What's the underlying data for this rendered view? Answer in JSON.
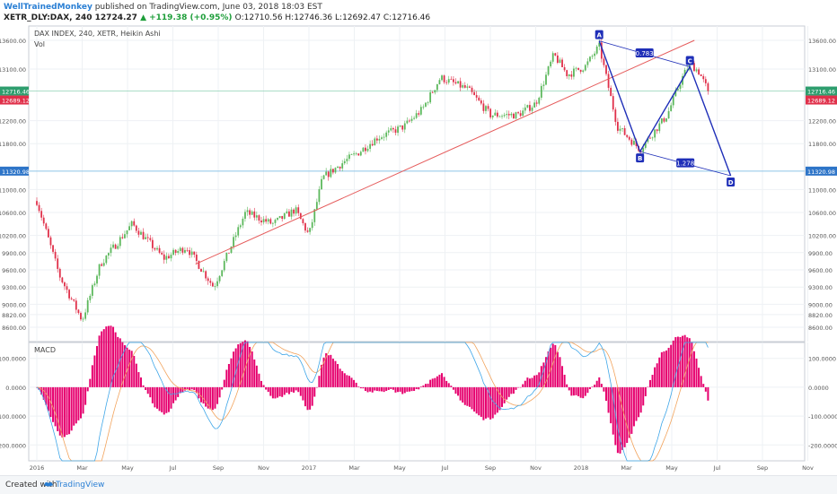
{
  "header": {
    "author": "WellTrainedMonkey",
    "published_text": "published on TradingView.com, June 03, 2018 18:03 EST",
    "symbol_line": "XETR_DLY:DAX, 240",
    "last_price": "12724.27",
    "change": "▲ +119.38 (+0.95%)",
    "ohlc": "O:12710.56 H:12746.36 L:12692.47 C:12716.46"
  },
  "footer": {
    "created_with": "Created with",
    "brand": "TradingView",
    "brand_icon": "tradingview-logo-icon"
  },
  "colors": {
    "candle_up": "#5cb85c",
    "candle_down": "#e0304a",
    "trendline": "#e55a5a",
    "harmonic": "#1f2fb8",
    "macd_line": "#3ea6e8",
    "signal_line": "#f2a35c",
    "histogram": "#e6006e",
    "price_label": "#2e9e6e",
    "bid_label": "#e0304a",
    "level_label": "#2e75c8",
    "level_line": "#8ec4e8"
  },
  "chart_data": [
    {
      "type": "candlestick",
      "title": "DAX INDEX, 240, XETR, Heikin Ashi",
      "indicator_label": "Vol",
      "x_tick_labels": [
        "2016",
        "Mar",
        "May",
        "Jul",
        "Sep",
        "Nov",
        "2017",
        "Mar",
        "May",
        "Jul",
        "Sep",
        "Nov",
        "2018",
        "Mar",
        "May",
        "Jul",
        "Sep",
        "Nov"
      ],
      "y_ticks": [
        8600,
        8820,
        9000,
        9300,
        9600,
        9900,
        10200,
        10600,
        11000,
        11800,
        12200,
        13100,
        13600
      ],
      "y_tick_labels": [
        "8600.00",
        "8820.00",
        "9000.00",
        "9300.00",
        "9600.00",
        "9900.00",
        "10200.00",
        "10600.00",
        "11000.00",
        "11800.00",
        "12200.00",
        "13100.00",
        "13600.00"
      ],
      "ylim": [
        8350,
        13850
      ],
      "grid": true,
      "price_path_waypoints": {
        "t": [
          0,
          0.5,
          1,
          1.4,
          2.1,
          2.8,
          3.3,
          3.9,
          4.6,
          5.2,
          5.7,
          6,
          6.3,
          6.8,
          7.1,
          7.5,
          8.1,
          8.5,
          8.9,
          9.5,
          10,
          10.6,
          11,
          11.4,
          11.7,
          12.1,
          12.4,
          12.8,
          13.3,
          13.9,
          14.2,
          14.4,
          14.6,
          14.8
        ],
        "price": [
          10800,
          9500,
          8720,
          9700,
          10400,
          9800,
          10000,
          9300,
          10600,
          10400,
          10650,
          10200,
          11200,
          11500,
          11650,
          11900,
          12100,
          12400,
          12950,
          12750,
          12300,
          12300,
          12500,
          13350,
          13000,
          13150,
          13500,
          12100,
          11700,
          12300,
          12900,
          13200,
          13050,
          12716
        ]
      },
      "last_price": 12716.46,
      "last_price_label": "12716.46",
      "bid_label": "12689.12",
      "level_price": 11320.98,
      "level_label": "11320.98",
      "trendline": {
        "start": {
          "t": 3.5,
          "price": 9700
        },
        "end": {
          "t": 14.5,
          "price": 13600
        }
      },
      "harmonic_pattern": {
        "points": [
          {
            "label": "A",
            "t": 12.4,
            "price": 13590
          },
          {
            "label": "B",
            "t": 13.3,
            "price": 11660
          },
          {
            "label": "C",
            "t": 14.4,
            "price": 13140
          },
          {
            "label": "D",
            "t": 15.3,
            "price": 11240
          }
        ],
        "ratios": [
          {
            "label": "0.783",
            "between": "A-C"
          },
          {
            "label": "1.278",
            "between": "B-D"
          }
        ]
      }
    },
    {
      "type": "line",
      "title": "MACD",
      "y_ticks": [
        100,
        0,
        -100,
        -200
      ],
      "y_tick_labels": [
        "100.0000",
        "0.0000",
        "-100.0000",
        "-200.0000"
      ],
      "ylim": [
        -255,
        155
      ],
      "series": [
        {
          "name": "MACD",
          "type": "line"
        },
        {
          "name": "Signal",
          "type": "line"
        },
        {
          "name": "Histogram",
          "type": "bar"
        }
      ]
    }
  ]
}
